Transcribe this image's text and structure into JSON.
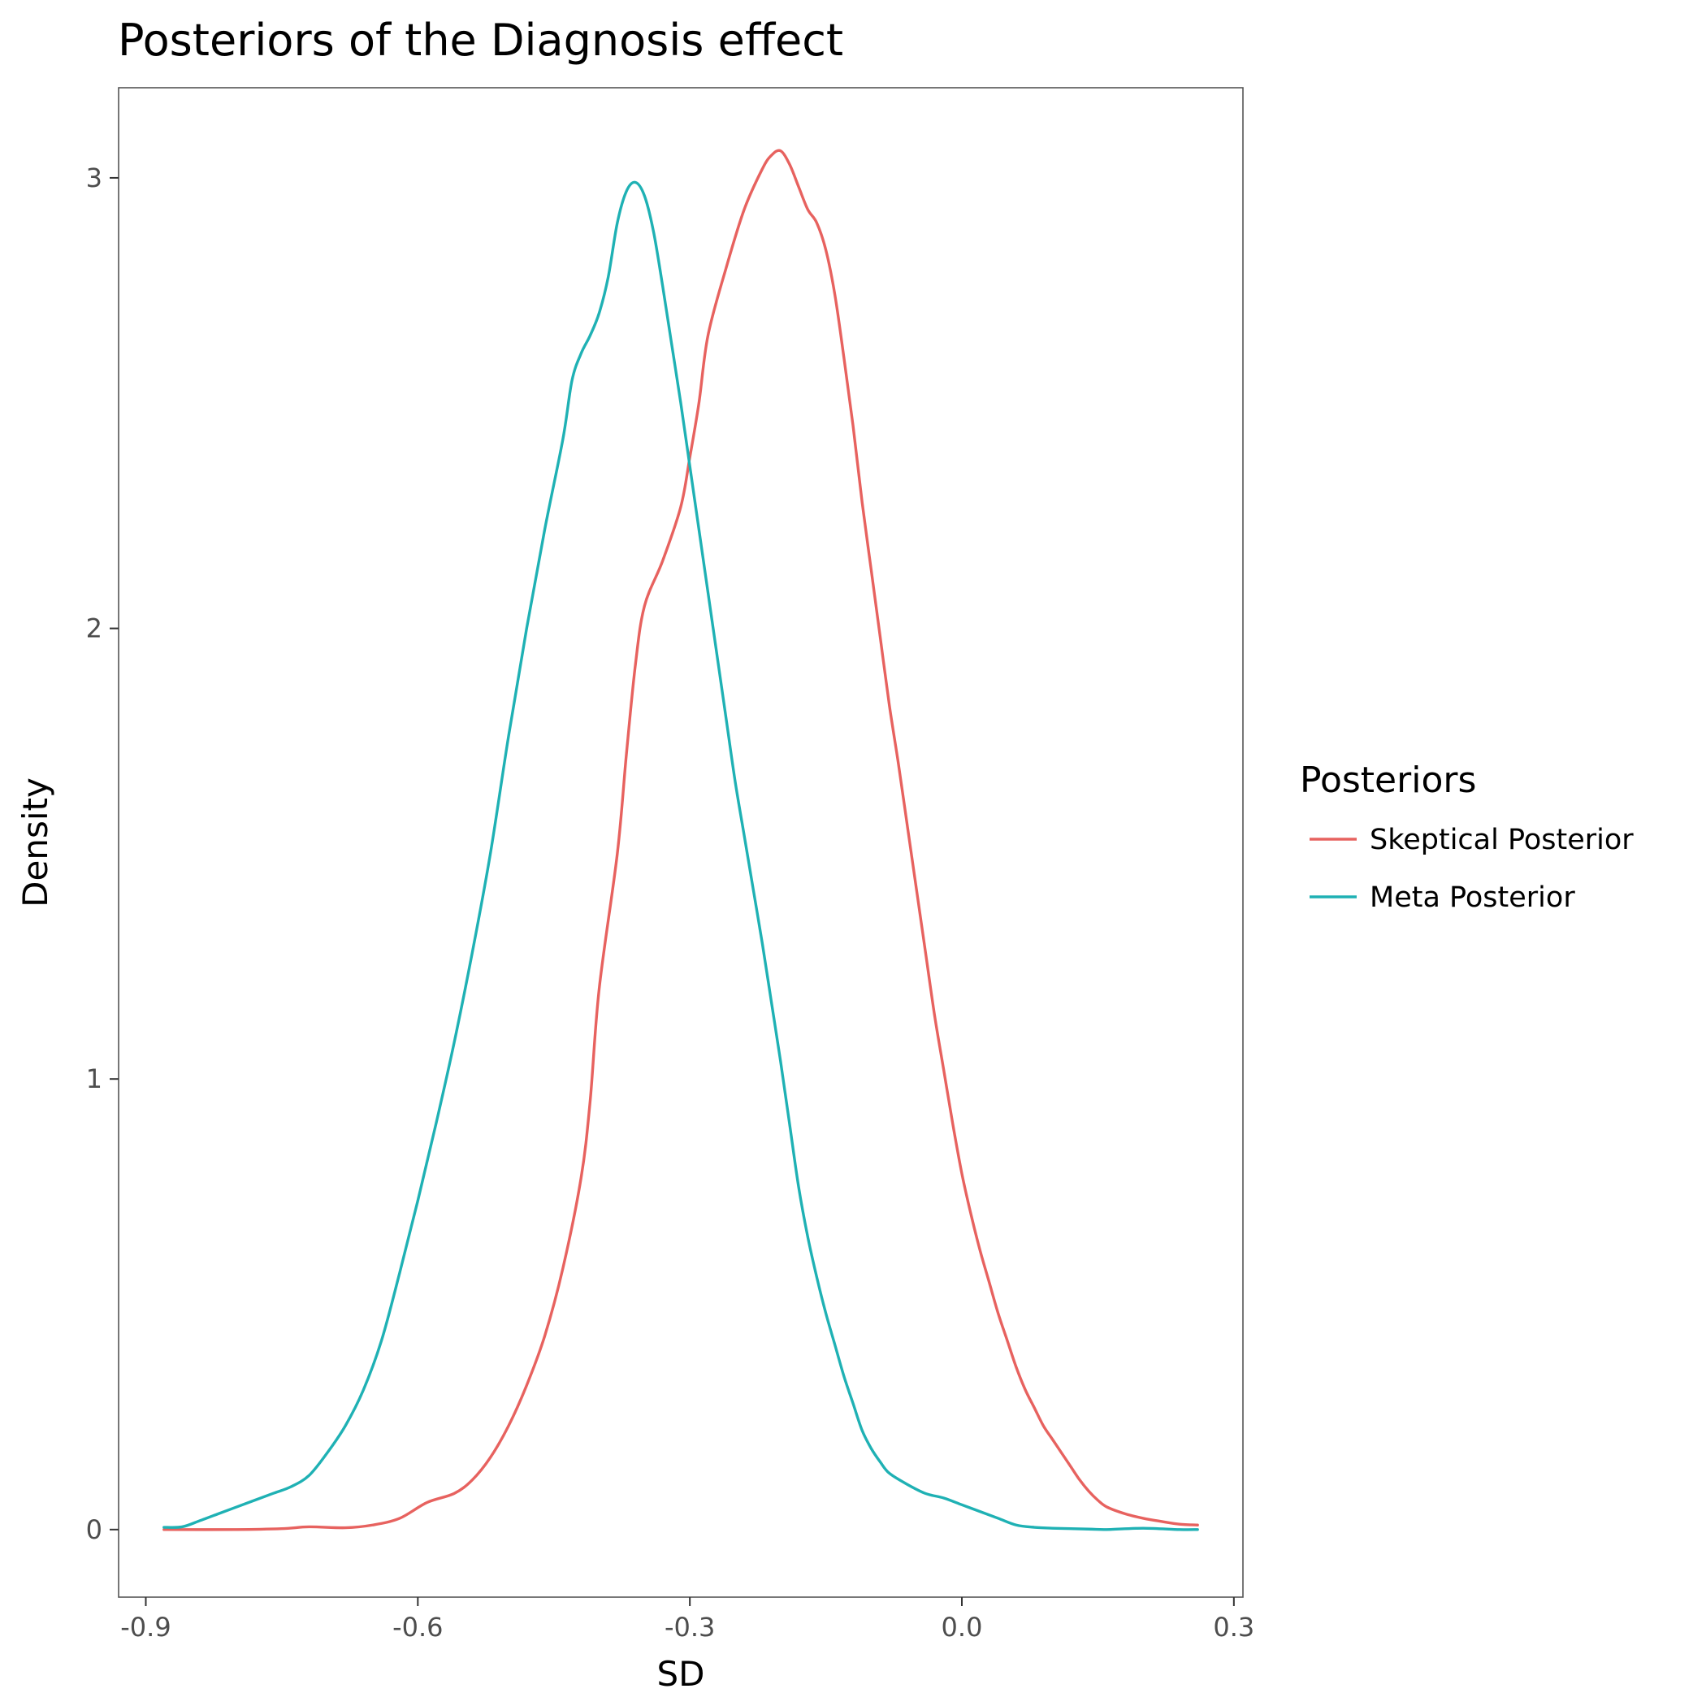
{
  "chart_data": {
    "type": "line",
    "title": "Posteriors of the Diagnosis effect",
    "xlabel": "SD",
    "ylabel": "Density",
    "xlim": [
      -0.93,
      0.31
    ],
    "ylim": [
      -0.15,
      3.2
    ],
    "x_ticks": [
      -0.9,
      -0.6,
      -0.3,
      0.0,
      0.3
    ],
    "x_tick_labels": [
      "-0.9",
      "-0.6",
      "-0.3",
      "0.0",
      "0.3"
    ],
    "y_ticks": [
      0,
      1,
      2,
      3
    ],
    "y_tick_labels": [
      "0",
      "1",
      "2",
      "3"
    ],
    "grid": false,
    "legend": {
      "title": "Posteriors",
      "position": "right"
    },
    "series": [
      {
        "name": "Skeptical Posterior",
        "color": "#E7625F",
        "points": [
          [
            -0.88,
            0.0
          ],
          [
            -0.8,
            0.0
          ],
          [
            -0.75,
            0.002
          ],
          [
            -0.72,
            0.006
          ],
          [
            -0.68,
            0.004
          ],
          [
            -0.65,
            0.01
          ],
          [
            -0.62,
            0.025
          ],
          [
            -0.59,
            0.06
          ],
          [
            -0.56,
            0.08
          ],
          [
            -0.54,
            0.11
          ],
          [
            -0.52,
            0.16
          ],
          [
            -0.5,
            0.23
          ],
          [
            -0.48,
            0.32
          ],
          [
            -0.46,
            0.43
          ],
          [
            -0.44,
            0.58
          ],
          [
            -0.42,
            0.78
          ],
          [
            -0.41,
            0.95
          ],
          [
            -0.4,
            1.2
          ],
          [
            -0.38,
            1.5
          ],
          [
            -0.37,
            1.72
          ],
          [
            -0.36,
            1.92
          ],
          [
            -0.35,
            2.05
          ],
          [
            -0.33,
            2.15
          ],
          [
            -0.31,
            2.27
          ],
          [
            -0.3,
            2.38
          ],
          [
            -0.29,
            2.5
          ],
          [
            -0.28,
            2.65
          ],
          [
            -0.26,
            2.8
          ],
          [
            -0.24,
            2.93
          ],
          [
            -0.22,
            3.02
          ],
          [
            -0.21,
            3.05
          ],
          [
            -0.2,
            3.06
          ],
          [
            -0.19,
            3.03
          ],
          [
            -0.18,
            2.98
          ],
          [
            -0.17,
            2.93
          ],
          [
            -0.16,
            2.9
          ],
          [
            -0.15,
            2.84
          ],
          [
            -0.14,
            2.74
          ],
          [
            -0.13,
            2.6
          ],
          [
            -0.12,
            2.45
          ],
          [
            -0.11,
            2.28
          ],
          [
            -0.1,
            2.13
          ],
          [
            -0.09,
            1.98
          ],
          [
            -0.08,
            1.83
          ],
          [
            -0.07,
            1.7
          ],
          [
            -0.06,
            1.56
          ],
          [
            -0.05,
            1.42
          ],
          [
            -0.04,
            1.28
          ],
          [
            -0.03,
            1.14
          ],
          [
            -0.02,
            1.02
          ],
          [
            -0.01,
            0.9
          ],
          [
            0.0,
            0.79
          ],
          [
            0.01,
            0.7
          ],
          [
            0.02,
            0.62
          ],
          [
            0.03,
            0.55
          ],
          [
            0.04,
            0.48
          ],
          [
            0.05,
            0.42
          ],
          [
            0.06,
            0.36
          ],
          [
            0.07,
            0.31
          ],
          [
            0.08,
            0.27
          ],
          [
            0.09,
            0.23
          ],
          [
            0.1,
            0.2
          ],
          [
            0.11,
            0.17
          ],
          [
            0.12,
            0.14
          ],
          [
            0.13,
            0.11
          ],
          [
            0.14,
            0.085
          ],
          [
            0.15,
            0.065
          ],
          [
            0.16,
            0.05
          ],
          [
            0.18,
            0.035
          ],
          [
            0.2,
            0.025
          ],
          [
            0.22,
            0.018
          ],
          [
            0.24,
            0.012
          ],
          [
            0.26,
            0.01
          ]
        ]
      },
      {
        "name": "Meta Posterior",
        "color": "#1FB1B4",
        "points": [
          [
            -0.88,
            0.005
          ],
          [
            -0.86,
            0.006
          ],
          [
            -0.84,
            0.02
          ],
          [
            -0.82,
            0.035
          ],
          [
            -0.8,
            0.05
          ],
          [
            -0.78,
            0.065
          ],
          [
            -0.76,
            0.08
          ],
          [
            -0.74,
            0.095
          ],
          [
            -0.72,
            0.12
          ],
          [
            -0.7,
            0.17
          ],
          [
            -0.68,
            0.23
          ],
          [
            -0.66,
            0.31
          ],
          [
            -0.64,
            0.42
          ],
          [
            -0.62,
            0.57
          ],
          [
            -0.6,
            0.73
          ],
          [
            -0.58,
            0.9
          ],
          [
            -0.56,
            1.08
          ],
          [
            -0.54,
            1.28
          ],
          [
            -0.52,
            1.5
          ],
          [
            -0.5,
            1.76
          ],
          [
            -0.48,
            2.0
          ],
          [
            -0.46,
            2.22
          ],
          [
            -0.44,
            2.42
          ],
          [
            -0.43,
            2.55
          ],
          [
            -0.42,
            2.61
          ],
          [
            -0.41,
            2.65
          ],
          [
            -0.4,
            2.7
          ],
          [
            -0.39,
            2.78
          ],
          [
            -0.38,
            2.9
          ],
          [
            -0.37,
            2.97
          ],
          [
            -0.36,
            2.99
          ],
          [
            -0.35,
            2.96
          ],
          [
            -0.34,
            2.88
          ],
          [
            -0.33,
            2.76
          ],
          [
            -0.32,
            2.63
          ],
          [
            -0.31,
            2.5
          ],
          [
            -0.3,
            2.36
          ],
          [
            -0.29,
            2.22
          ],
          [
            -0.28,
            2.08
          ],
          [
            -0.27,
            1.94
          ],
          [
            -0.26,
            1.8
          ],
          [
            -0.25,
            1.66
          ],
          [
            -0.24,
            1.54
          ],
          [
            -0.23,
            1.42
          ],
          [
            -0.22,
            1.3
          ],
          [
            -0.21,
            1.17
          ],
          [
            -0.2,
            1.04
          ],
          [
            -0.19,
            0.9
          ],
          [
            -0.18,
            0.76
          ],
          [
            -0.17,
            0.65
          ],
          [
            -0.16,
            0.56
          ],
          [
            -0.15,
            0.48
          ],
          [
            -0.14,
            0.41
          ],
          [
            -0.13,
            0.34
          ],
          [
            -0.12,
            0.28
          ],
          [
            -0.11,
            0.22
          ],
          [
            -0.1,
            0.18
          ],
          [
            -0.09,
            0.15
          ],
          [
            -0.08,
            0.125
          ],
          [
            -0.06,
            0.1
          ],
          [
            -0.04,
            0.08
          ],
          [
            -0.02,
            0.07
          ],
          [
            0.0,
            0.055
          ],
          [
            0.02,
            0.04
          ],
          [
            0.04,
            0.025
          ],
          [
            0.06,
            0.01
          ],
          [
            0.08,
            0.005
          ],
          [
            0.1,
            0.003
          ],
          [
            0.14,
            0.001
          ],
          [
            0.16,
            0.0
          ],
          [
            0.2,
            0.003
          ],
          [
            0.24,
            0.0
          ],
          [
            0.26,
            0.0
          ]
        ]
      }
    ]
  }
}
